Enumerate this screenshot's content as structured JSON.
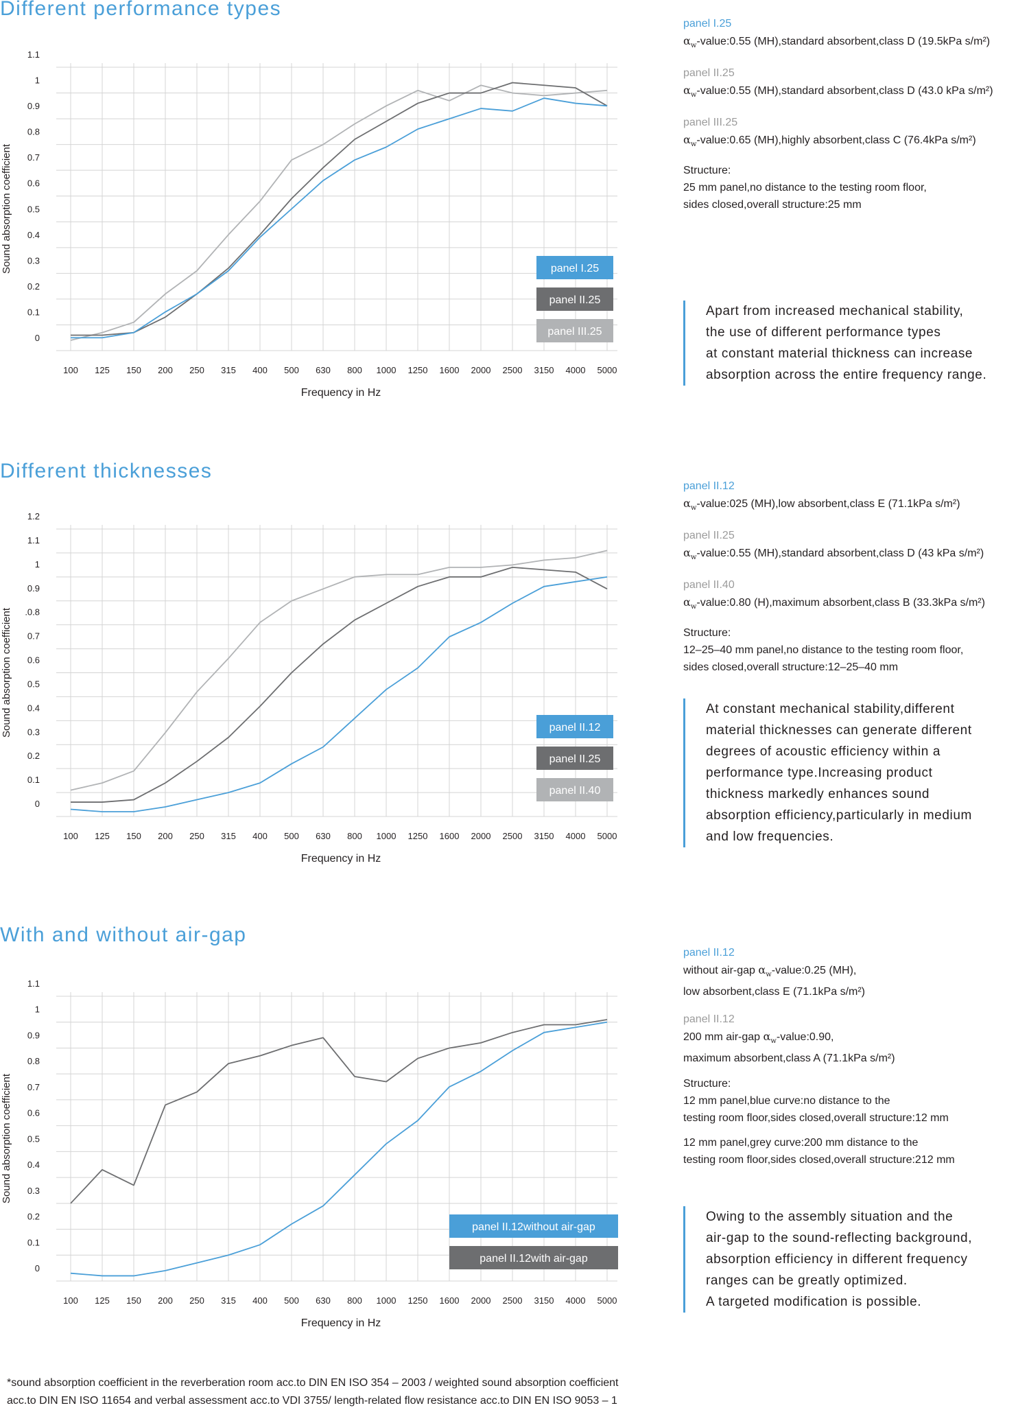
{
  "sections": [
    {
      "title": "Different performance types",
      "panels": [
        {
          "name": "panel I.25",
          "value": "-value:0.55  (MH),standard  absorbent,class   D (19.5kPa s/m²)"
        },
        {
          "name": "panel II.25",
          "value": "-value:0.55 (MH),standard  absorbent,class  D (43.0 kPa s/m²)"
        },
        {
          "name": "panel III.25",
          "value": "-value:0.65  (MH),highly  absorbent,class   C  (76.4kPa s/m²)"
        }
      ],
      "structure_title": "Structure:",
      "structure_lines": [
        [
          "25 mm panel,no distance to the testing room floor,",
          "sides closed,overall structure:25   mm"
        ]
      ],
      "quote": [
        "Apart  from increased mechanical stability,",
        "the use of different  performance  types",
        "at constant  material thickness can increase",
        "absorption across the entire frequency  range."
      ]
    },
    {
      "title": "Different thicknesses",
      "panels": [
        {
          "name": "panel II.12",
          "value": "-value:025   (MH),low absorbent,class    E (71.1kPa s/m²)"
        },
        {
          "name": "panel II.25",
          "value": "-value:0.55 (MH),standard  absorbent,class  D (43 kPa s/m²)"
        },
        {
          "name": "panel II.40",
          "value": "-value:0.80  (H),maximum  absorbent,class  B (33.3kPa s/m²)"
        }
      ],
      "structure_title": "Structure:",
      "structure_lines": [
        [
          "12–25–40    mm panel,no distance to the testing room floor,",
          "sides closed,overall structure:12–25–40     mm"
        ]
      ],
      "quote": [
        "At constant  mechanical stability,different",
        "material thicknesses can generate different",
        "degrees of acoustic  efficiency  within a",
        "performance  type.Increasing  product",
        "thickness markedly enhances sound",
        "absorption efficiency,particularly   in medium",
        "and low frequencies."
      ]
    },
    {
      "title": "With and without air-gap",
      "panels": [
        {
          "name": "panel II.12",
          "pre": "without  air-gap ",
          "value": "-value:0.25 (MH),",
          "line2": "low absorbent,class    E (71.1kPa s/m²)"
        },
        {
          "name": "panel II.12",
          "pre": "200  mm air-gap ",
          "value": "-value:0.90,",
          "line2": "maximum  absorbent,class   A (71.1kPa s/m²)"
        }
      ],
      "structure_title": "Structure:",
      "structure_lines": [
        [
          "12 mm panel,blue curve:no distance to  the",
          "testing  room floor,sides  closed,overall structure:12  mm"
        ],
        [
          "12 mm panel,grey curve:200  mm distance to the",
          "testing  room floor,sides  closed,overall structure:212  mm"
        ]
      ],
      "quote": [
        "Owing to the assembly situation  and the",
        "air-gap to the sound-reflecting background,",
        "absorption efficiency in different  frequency",
        "ranges can be greatly optimized.",
        "A targeted modification  is possible."
      ]
    }
  ],
  "alpha_symbol": "α",
  "alpha_sub": "w",
  "footnote": [
    "*sound absorption coefficient  in the reverberation room acc.to DIN EN ISO 354 – 2003 / weighted sound absorption coefficient",
    "acc.to  DIN EN ISO 11654 and verbal assessment acc.to  VDI 3755/ length-related  flow resistance acc.to  DIN EN ISO 9053  –  1"
  ],
  "chart_data": [
    {
      "type": "line",
      "title": "",
      "xlabel": "Frequency  in Hz",
      "ylabel": "Sound absorption coefficient",
      "x": [
        "100",
        "125",
        "150",
        "200",
        "250",
        "315",
        "400",
        "500",
        "630",
        "800",
        "1000",
        "1250",
        "1600",
        "2000",
        "2500",
        "3150",
        "4000",
        "5000"
      ],
      "yticks": [
        "0",
        "0.1",
        "0.2",
        "0.3",
        "0.4",
        "0.5",
        "0.6",
        "0.7",
        "0.8",
        "0.9",
        "1",
        "1.1"
      ],
      "ylim": [
        0,
        1.1
      ],
      "grid": true,
      "legend_position": "bottom-right",
      "series": [
        {
          "name": "panel I.25",
          "color": "#4a9fd8",
          "values": [
            0.05,
            0.05,
            0.07,
            0.15,
            0.22,
            0.31,
            0.44,
            0.55,
            0.66,
            0.74,
            0.79,
            0.86,
            0.9,
            0.94,
            0.93,
            0.98,
            0.96,
            0.95
          ]
        },
        {
          "name": "panel II.25",
          "color": "#6d6e70",
          "values": [
            0.06,
            0.06,
            0.07,
            0.13,
            0.22,
            0.32,
            0.45,
            0.59,
            0.71,
            0.82,
            0.89,
            0.96,
            1.0,
            1.0,
            1.04,
            1.03,
            1.02,
            0.95
          ]
        },
        {
          "name": "panel III.25",
          "color": "#b1b3b5",
          "values": [
            0.04,
            0.07,
            0.11,
            0.22,
            0.31,
            0.45,
            0.58,
            0.74,
            0.8,
            0.88,
            0.95,
            1.01,
            0.97,
            1.03,
            1.0,
            0.99,
            1.0,
            1.01
          ]
        }
      ]
    },
    {
      "type": "line",
      "title": "",
      "xlabel": "Frequency  in Hz",
      "ylabel": "Sound absorption coefficient",
      "x": [
        "100",
        "125",
        "150",
        "200",
        "250",
        "315",
        "400",
        "500",
        "630",
        "800",
        "1000",
        "1250",
        "1600",
        "2000",
        "2500",
        "3150",
        "4000",
        "5000"
      ],
      "yticks": [
        "0",
        "0.1",
        "0.2",
        "0.3",
        "0.4",
        "0.5",
        "0.6",
        "0.7",
        ".0.8",
        "0.9",
        "1",
        "1.1",
        "1.2"
      ],
      "ylim": [
        0,
        1.2
      ],
      "grid": true,
      "legend_position": "bottom-right",
      "series": [
        {
          "name": "panel II.12",
          "color": "#4a9fd8",
          "values": [
            0.03,
            0.02,
            0.02,
            0.04,
            0.07,
            0.1,
            0.14,
            0.22,
            0.29,
            0.41,
            0.53,
            0.62,
            0.75,
            0.81,
            0.89,
            0.96,
            0.98,
            1.0
          ]
        },
        {
          "name": "panel II.25",
          "color": "#6d6e70",
          "values": [
            0.06,
            0.06,
            0.07,
            0.14,
            0.23,
            0.33,
            0.46,
            0.6,
            0.72,
            0.82,
            0.89,
            0.96,
            1.0,
            1.0,
            1.04,
            1.03,
            1.02,
            0.95
          ]
        },
        {
          "name": "panel II.40",
          "color": "#b1b3b5",
          "values": [
            0.11,
            0.14,
            0.19,
            0.35,
            0.52,
            0.66,
            0.81,
            0.9,
            0.95,
            1.0,
            1.01,
            1.01,
            1.04,
            1.04,
            1.05,
            1.07,
            1.08,
            1.11
          ]
        }
      ]
    },
    {
      "type": "line",
      "title": "",
      "xlabel": "Frequency  in Hz",
      "ylabel": "Sound absorption coefficient",
      "x": [
        "100",
        "125",
        "150",
        "200",
        "250",
        "315",
        "400",
        "500",
        "630",
        "800",
        "1000",
        "1250",
        "1600",
        "2000",
        "2500",
        "3150",
        "4000",
        "5000"
      ],
      "yticks": [
        "0",
        "0.1",
        "0.2",
        "0.3",
        "0.4",
        "0.5",
        "0.6",
        "0.7",
        "0.8",
        "0.9",
        "1",
        "1.1"
      ],
      "ylim": [
        0,
        1.1
      ],
      "grid": true,
      "legend_position": "bottom-right",
      "series": [
        {
          "name": "panel II.12without  air-gap",
          "color": "#4a9fd8",
          "values": [
            0.03,
            0.02,
            0.02,
            0.04,
            0.07,
            0.1,
            0.14,
            0.22,
            0.29,
            0.41,
            0.53,
            0.62,
            0.75,
            0.81,
            0.89,
            0.96,
            0.98,
            1.0
          ]
        },
        {
          "name": "panel II.12with air-gap",
          "color": "#6d6e70",
          "values": [
            0.3,
            0.43,
            0.37,
            0.68,
            0.73,
            0.84,
            0.87,
            0.91,
            0.94,
            0.79,
            0.77,
            0.86,
            0.9,
            0.92,
            0.96,
            0.99,
            0.99,
            1.01
          ]
        }
      ]
    }
  ]
}
